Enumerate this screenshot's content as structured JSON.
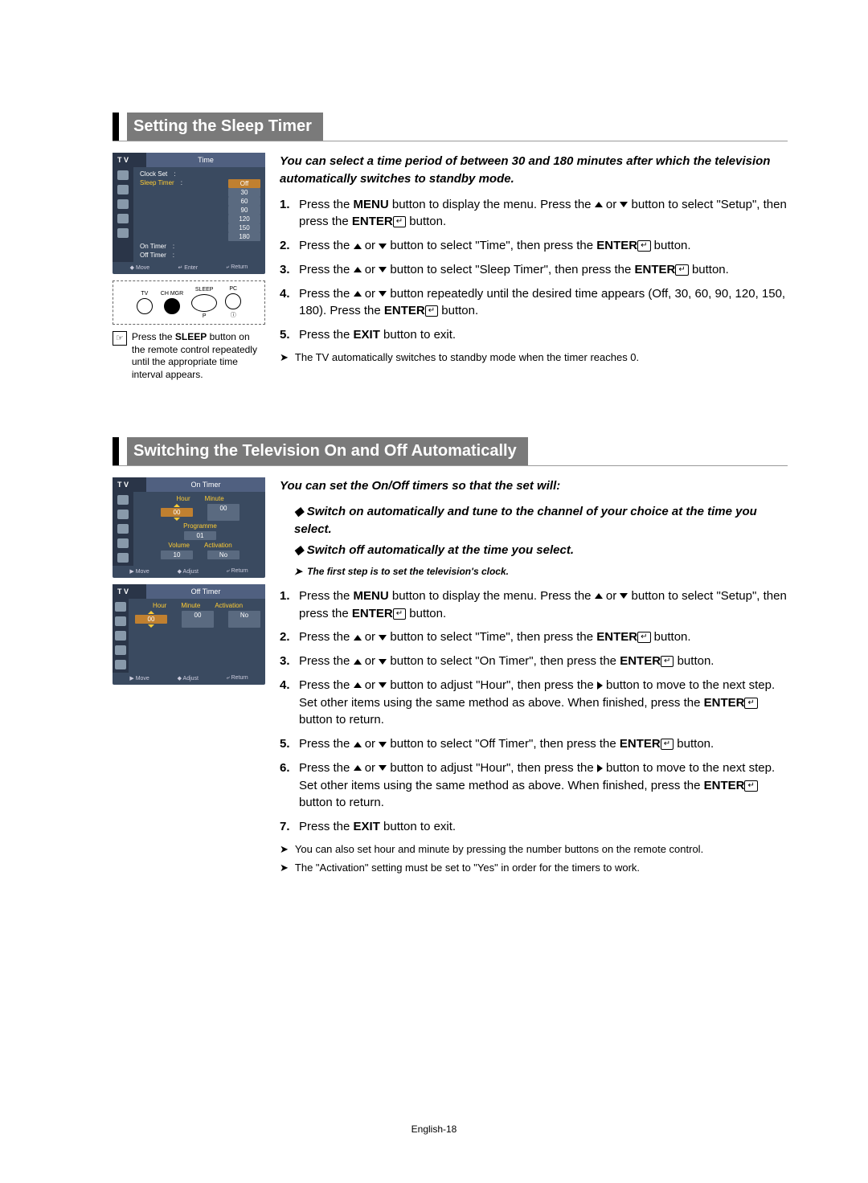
{
  "page_number": "English-18",
  "sections": [
    {
      "title": "Setting the Sleep Timer",
      "intro": "You can select a time period of between 30 and 180 minutes after which the television automatically switches to standby mode.",
      "steps": [
        {
          "n": "1.",
          "t": "Press the <b>MENU</b> button to display the menu. Press the <up></up> or <down></down> button to select \"Setup\", then press the <b>ENTER</b><ent></ent> button."
        },
        {
          "n": "2.",
          "t": "Press the <up></up> or <down></down> button to select \"Time\", then press the <b>ENTER</b><ent></ent> button."
        },
        {
          "n": "3.",
          "t": "Press the <up></up> or <down></down> button to select \"Sleep Timer\", then press the <b>ENTER</b><ent></ent> button."
        },
        {
          "n": "4.",
          "t": "Press the <up></up> or <down></down> button repeatedly until the desired time appears (Off, 30, 60, 90, 120, 150, 180). Press the <b>ENTER</b><ent></ent> button."
        },
        {
          "n": "5.",
          "t": "Press the <b>EXIT</b> button to exit."
        }
      ],
      "notes": [
        "The TV automatically switches to standby mode when the timer reaches 0."
      ],
      "osd": {
        "tv": "T V",
        "title": "Time",
        "items": [
          {
            "label": "Clock Set",
            "val": "",
            "hl": false
          },
          {
            "label": "Sleep Timer",
            "val": "",
            "hl": true
          }
        ],
        "more": [
          {
            "label": "On Timer",
            "val": ""
          },
          {
            "label": "Off Timer",
            "val": ""
          }
        ],
        "dropdown": [
          "Off",
          "30",
          "60",
          "90",
          "120",
          "150",
          "180"
        ],
        "foot": [
          "◆ Move",
          "↵ Enter",
          "⤶ Return"
        ]
      },
      "remote": {
        "labels": [
          "TV",
          "CH MGR",
          "SLEEP",
          "PC"
        ],
        "p": "P",
        "extra": "ⓘ"
      },
      "tip": {
        "icon": "☞",
        "text": "Press the <b>SLEEP</b> button on the remote control repeatedly until the appropriate time interval appears."
      }
    },
    {
      "title": "Switching the Television On and Off Automatically",
      "intro": "You can set the On/Off timers so that the set will:",
      "bullets": [
        "Switch on automatically and tune to the channel of your choice at the time you select.",
        "Switch off automatically at the time you select."
      ],
      "subnote": "The first step is to set the television's clock.",
      "steps": [
        {
          "n": "1.",
          "t": "Press the <b>MENU</b> button to display the menu. Press the <up></up> or <down></down> button to select \"Setup\", then press the <b>ENTER</b><ent></ent> button."
        },
        {
          "n": "2.",
          "t": "Press the <up></up> or <down></down> button to select \"Time\", then press the <b>ENTER</b><ent></ent> button."
        },
        {
          "n": "3.",
          "t": "Press the <up></up> or <down></down> button to select \"On Timer\", then press the <b>ENTER</b><ent></ent> button."
        },
        {
          "n": "4.",
          "t": "Press the <up></up> or <down></down> button to adjust \"Hour\", then press the <right></right> button to move to the next step. Set other items using the same method as above. When finished, press the <b>ENTER</b><ent></ent> button to return."
        },
        {
          "n": "5.",
          "t": "Press the <up></up> or <down></down> button to select \"Off Timer\", then press the <b>ENTER</b><ent></ent> button."
        },
        {
          "n": "6.",
          "t": "Press the <up></up> or <down></down> button to adjust \"Hour\", then press the <right></right> button to move to the next step. Set other items using the same method as above. When finished, press the <b>ENTER</b><ent></ent> button to return."
        },
        {
          "n": "7.",
          "t": "Press the <b>EXIT</b> button to exit."
        }
      ],
      "notes": [
        "You can also set hour and minute by pressing the number buttons on the remote control.",
        "The \"Activation\" setting must be set to \"Yes\" in order for the timers to work."
      ],
      "osd_on": {
        "tv": "T V",
        "title": "On Timer",
        "cols": [
          "Hour",
          "Minute"
        ],
        "vals": [
          "00",
          "00"
        ],
        "prog_label": "Programme",
        "prog_val": "01",
        "row2_labels": [
          "Volume",
          "Activation"
        ],
        "row2_vals": [
          "10",
          "No"
        ],
        "foot": [
          "▶ Move",
          "◆ Adjust",
          "⤶ Return"
        ]
      },
      "osd_off": {
        "tv": "T V",
        "title": "Off Timer",
        "cols": [
          "Hour",
          "Minute",
          "Activation"
        ],
        "vals": [
          "00",
          "00",
          "No"
        ],
        "foot": [
          "▶ Move",
          "◆ Adjust",
          "⤶ Return"
        ]
      }
    }
  ]
}
